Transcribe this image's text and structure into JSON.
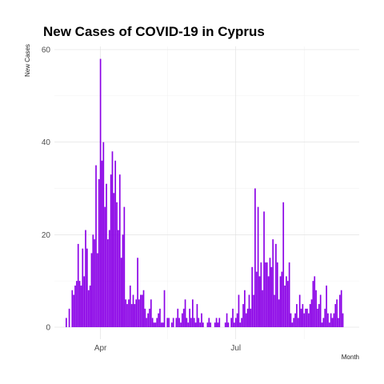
{
  "chart_data": {
    "type": "bar",
    "title": "New Cases of COVID-19 in Cyprus",
    "xlabel": "Month",
    "ylabel": "New Cases",
    "color": "#8a00e6",
    "ylim": [
      0,
      60
    ],
    "yticks": [
      0,
      20,
      40,
      60
    ],
    "xticks": [
      {
        "date": "2020-04-01",
        "label": "Apr"
      },
      {
        "date": "2020-07-01",
        "label": "Jul"
      }
    ],
    "xminor": [
      "2020-05-16",
      "2020-08-16"
    ],
    "xlim": [
      "2020-03-01",
      "2020-09-22"
    ],
    "grid": true,
    "legend": "none",
    "x_start": "2020-03-09",
    "values": [
      2,
      0,
      4,
      0,
      8,
      7,
      9,
      10,
      18,
      10,
      9,
      17,
      11,
      21,
      17,
      8,
      9,
      16,
      20,
      19,
      35,
      16,
      32,
      58,
      36,
      40,
      26,
      31,
      19,
      21,
      33,
      38,
      29,
      36,
      27,
      21,
      33,
      15,
      20,
      26,
      6,
      5,
      6,
      9,
      5,
      7,
      5,
      6,
      15,
      6,
      7,
      7,
      8,
      4,
      2,
      3,
      4,
      6,
      2,
      1,
      1,
      2,
      3,
      4,
      1,
      1,
      8,
      0,
      2,
      2,
      0,
      1,
      2,
      0,
      2,
      4,
      2,
      1,
      3,
      4,
      6,
      2,
      1,
      4,
      2,
      6,
      2,
      1,
      5,
      2,
      1,
      3,
      1,
      0,
      0,
      1,
      2,
      1,
      0,
      0,
      1,
      2,
      1,
      2,
      0,
      0,
      0,
      1,
      3,
      1,
      0,
      2,
      4,
      1,
      2,
      3,
      7,
      1,
      2,
      5,
      8,
      3,
      4,
      7,
      4,
      13,
      7,
      30,
      12,
      26,
      11,
      14,
      8,
      25,
      14,
      14,
      11,
      15,
      13,
      19,
      7,
      18,
      14,
      6,
      11,
      12,
      27,
      9,
      11,
      10,
      14,
      3,
      1,
      2,
      3,
      5,
      2,
      7,
      4,
      5,
      3,
      4,
      4,
      3,
      5,
      6,
      10,
      11,
      8,
      4,
      5,
      7,
      1,
      2,
      4,
      9,
      3,
      1,
      3,
      2,
      3,
      5,
      6,
      2,
      7,
      8,
      3
    ]
  }
}
